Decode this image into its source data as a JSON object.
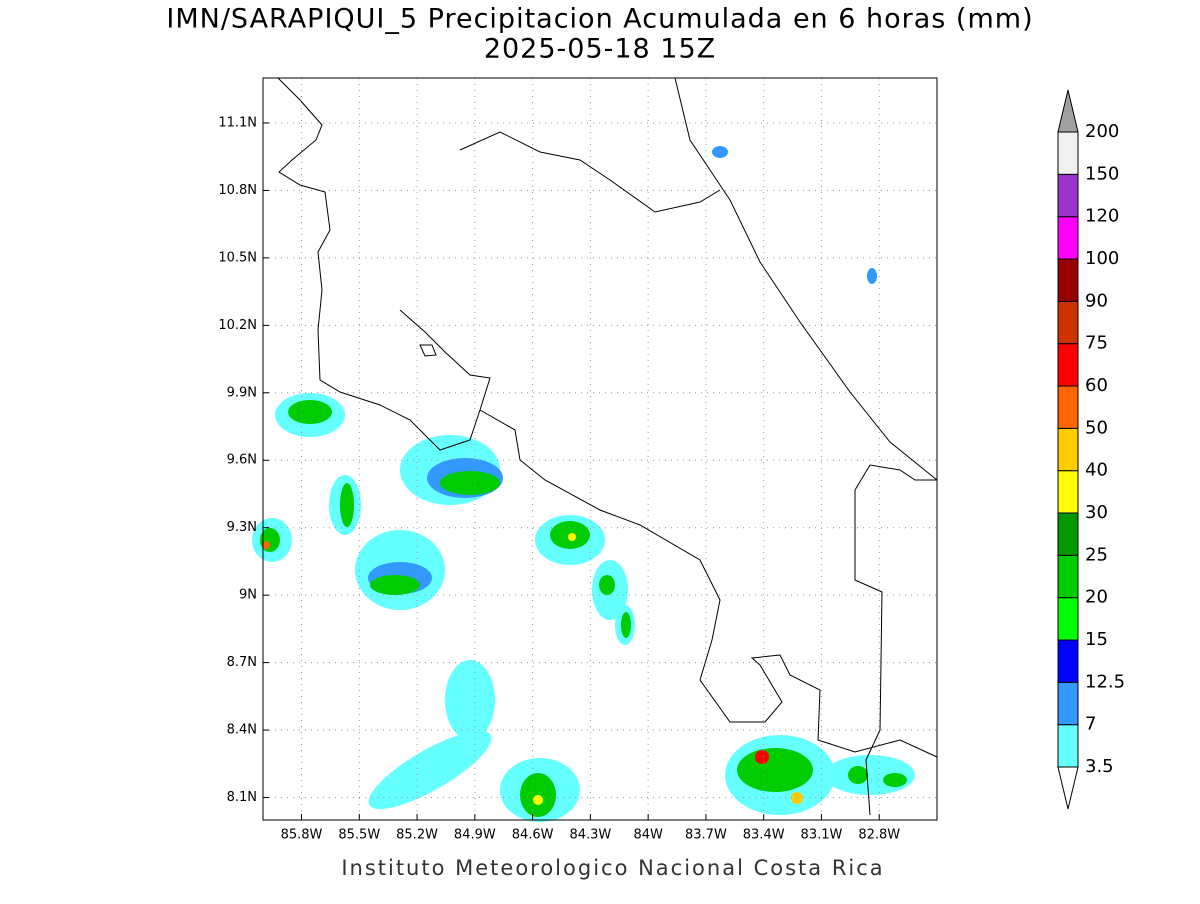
{
  "title": "IMN/SARAPIQUI_5 Precipitacion Acumulada en 6 horas (mm)",
  "subtitle": "2025-05-18 15Z",
  "footer": "Instituto Meteorologico Nacional Costa Rica",
  "map": {
    "xlim": [
      -86.0,
      -82.5
    ],
    "ylim": [
      8.0,
      11.3
    ],
    "xticks": [
      {
        "value": -85.8,
        "label": "85.8W"
      },
      {
        "value": -85.5,
        "label": "85.5W"
      },
      {
        "value": -85.2,
        "label": "85.2W"
      },
      {
        "value": -84.9,
        "label": "84.9W"
      },
      {
        "value": -84.6,
        "label": "84.6W"
      },
      {
        "value": -84.3,
        "label": "84.3W"
      },
      {
        "value": -84.0,
        "label": "84W"
      },
      {
        "value": -83.7,
        "label": "83.7W"
      },
      {
        "value": -83.4,
        "label": "83.4W"
      },
      {
        "value": -83.1,
        "label": "83.1W"
      },
      {
        "value": -82.8,
        "label": "82.8W"
      }
    ],
    "yticks": [
      {
        "value": 8.1,
        "label": "8.1N"
      },
      {
        "value": 8.4,
        "label": "8.4N"
      },
      {
        "value": 8.7,
        "label": "8.7N"
      },
      {
        "value": 9.0,
        "label": "9N"
      },
      {
        "value": 9.3,
        "label": "9.3N"
      },
      {
        "value": 9.6,
        "label": "9.6N"
      },
      {
        "value": 9.9,
        "label": "9.9N"
      },
      {
        "value": 10.2,
        "label": "10.2N"
      },
      {
        "value": 10.5,
        "label": "10.5N"
      },
      {
        "value": 10.8,
        "label": "10.8N"
      },
      {
        "value": 11.1,
        "label": "11.1N"
      }
    ],
    "grid": true
  },
  "colorbar": {
    "levels": [
      3.5,
      7,
      12.5,
      15,
      20,
      25,
      30,
      40,
      50,
      60,
      75,
      90,
      100,
      120,
      150,
      200
    ],
    "colors": [
      "#66ffff",
      "#3399ff",
      "#0000ff",
      "#00ff00",
      "#00cc00",
      "#009900",
      "#ffff00",
      "#ffcc00",
      "#ff6600",
      "#ff0000",
      "#cc3300",
      "#990000",
      "#ff00ff",
      "#9933cc",
      "#f0f0f0"
    ],
    "under_color": "#ffffff",
    "over_color": "#a0a0a0"
  }
}
